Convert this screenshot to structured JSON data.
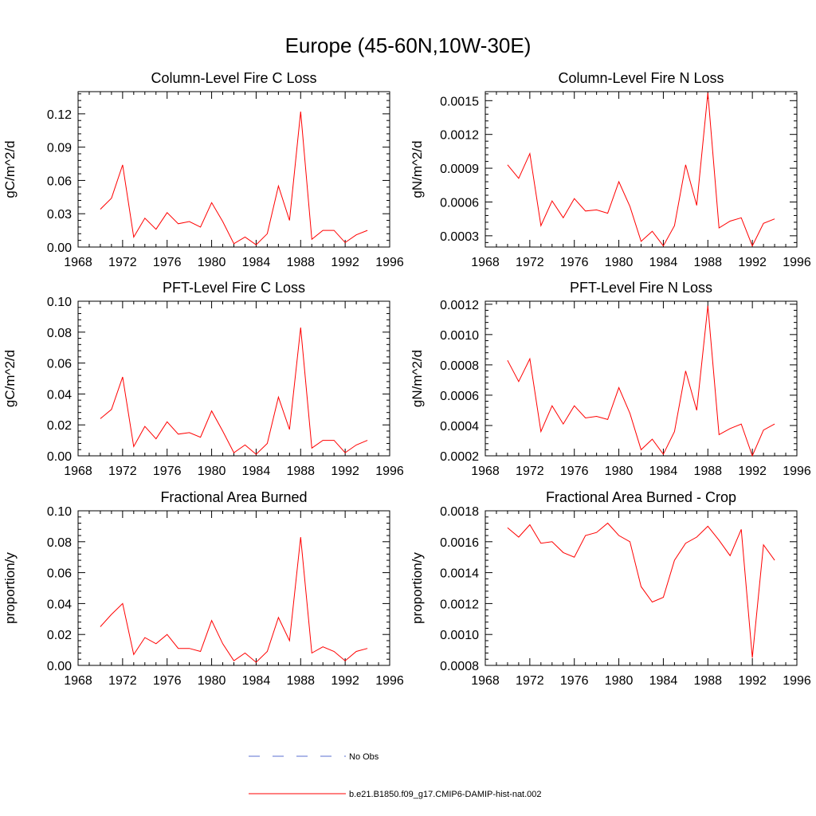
{
  "figure": {
    "title": "Europe (45-60N,10W-30E)"
  },
  "legend": [
    {
      "label": "No Obs",
      "color": "#5a6fd1",
      "style": "dashed"
    },
    {
      "label": "b.e21.B1850.f09_g17.CMIP6-DAMIP-hist-nat.002",
      "color": "#ff0000",
      "style": "solid"
    }
  ],
  "chart_data": [
    {
      "type": "line",
      "title": "Column-Level Fire C Loss",
      "ylabel": "gC/m^2/d",
      "xlim": [
        1968,
        1996
      ],
      "ylim": [
        0,
        0.14
      ],
      "xticks": [
        1968,
        1972,
        1976,
        1980,
        1984,
        1988,
        1992,
        1996
      ],
      "yticks": [
        0.0,
        0.03,
        0.06,
        0.09,
        0.12
      ],
      "ytick_labels": [
        "0.00",
        "0.03",
        "0.06",
        "0.09",
        "0.12"
      ],
      "series": [
        {
          "color": "#ff0000",
          "x": [
            1970,
            1971,
            1972,
            1973,
            1974,
            1975,
            1976,
            1977,
            1978,
            1979,
            1980,
            1981,
            1982,
            1983,
            1984,
            1985,
            1986,
            1987,
            1988,
            1989,
            1990,
            1991,
            1992,
            1993,
            1994
          ],
          "y": [
            0.034,
            0.044,
            0.074,
            0.009,
            0.026,
            0.016,
            0.031,
            0.021,
            0.023,
            0.018,
            0.04,
            0.023,
            0.003,
            0.009,
            0.002,
            0.012,
            0.055,
            0.024,
            0.122,
            0.007,
            0.015,
            0.015,
            0.004,
            0.011,
            0.015
          ]
        }
      ]
    },
    {
      "type": "line",
      "title": "Column-Level Fire N Loss",
      "ylabel": "gN/m^2/d",
      "xlim": [
        1968,
        1996
      ],
      "ylim": [
        0.0002,
        0.00158
      ],
      "xticks": [
        1968,
        1972,
        1976,
        1980,
        1984,
        1988,
        1992,
        1996
      ],
      "yticks": [
        0.0003,
        0.0006,
        0.0009,
        0.0012,
        0.0015
      ],
      "ytick_labels": [
        "0.0003",
        "0.0006",
        "0.0009",
        "0.0012",
        "0.0015"
      ],
      "series": [
        {
          "color": "#ff0000",
          "x": [
            1970,
            1971,
            1972,
            1973,
            1974,
            1975,
            1976,
            1977,
            1978,
            1979,
            1980,
            1981,
            1982,
            1983,
            1984,
            1985,
            1986,
            1987,
            1988,
            1989,
            1990,
            1991,
            1992,
            1993,
            1994
          ],
          "y": [
            0.00093,
            0.00081,
            0.00103,
            0.00039,
            0.00061,
            0.00046,
            0.00063,
            0.00052,
            0.00053,
            0.0005,
            0.00078,
            0.00056,
            0.00025,
            0.00034,
            0.00021,
            0.00039,
            0.00093,
            0.00057,
            0.00157,
            0.00037,
            0.00043,
            0.00046,
            0.00021,
            0.00041,
            0.00045
          ]
        }
      ]
    },
    {
      "type": "line",
      "title": "PFT-Level Fire C Loss",
      "ylabel": "gC/m^2/d",
      "xlim": [
        1968,
        1996
      ],
      "ylim": [
        0,
        0.1
      ],
      "xticks": [
        1968,
        1972,
        1976,
        1980,
        1984,
        1988,
        1992,
        1996
      ],
      "yticks": [
        0.0,
        0.02,
        0.04,
        0.06,
        0.08,
        0.1
      ],
      "ytick_labels": [
        "0.00",
        "0.02",
        "0.04",
        "0.06",
        "0.08",
        "0.10"
      ],
      "series": [
        {
          "color": "#ff0000",
          "x": [
            1970,
            1971,
            1972,
            1973,
            1974,
            1975,
            1976,
            1977,
            1978,
            1979,
            1980,
            1981,
            1982,
            1983,
            1984,
            1985,
            1986,
            1987,
            1988,
            1989,
            1990,
            1991,
            1992,
            1993,
            1994
          ],
          "y": [
            0.024,
            0.03,
            0.051,
            0.006,
            0.019,
            0.011,
            0.022,
            0.014,
            0.015,
            0.012,
            0.029,
            0.016,
            0.002,
            0.007,
            0.001,
            0.008,
            0.038,
            0.017,
            0.083,
            0.005,
            0.01,
            0.01,
            0.002,
            0.007,
            0.01
          ]
        }
      ]
    },
    {
      "type": "line",
      "title": "PFT-Level Fire N Loss",
      "ylabel": "gN/m^2/d",
      "xlim": [
        1968,
        1996
      ],
      "ylim": [
        0.0002,
        0.00122
      ],
      "xticks": [
        1968,
        1972,
        1976,
        1980,
        1984,
        1988,
        1992,
        1996
      ],
      "yticks": [
        0.0002,
        0.0004,
        0.0006,
        0.0008,
        0.001,
        0.0012
      ],
      "ytick_labels": [
        "0.0002",
        "0.0004",
        "0.0006",
        "0.0008",
        "0.0010",
        "0.0012"
      ],
      "series": [
        {
          "color": "#ff0000",
          "x": [
            1970,
            1971,
            1972,
            1973,
            1974,
            1975,
            1976,
            1977,
            1978,
            1979,
            1980,
            1981,
            1982,
            1983,
            1984,
            1985,
            1986,
            1987,
            1988,
            1989,
            1990,
            1991,
            1992,
            1993,
            1994
          ],
          "y": [
            0.00083,
            0.00069,
            0.00084,
            0.00036,
            0.00053,
            0.00041,
            0.00053,
            0.00045,
            0.00046,
            0.00044,
            0.00065,
            0.00048,
            0.00024,
            0.00031,
            0.00021,
            0.00036,
            0.00076,
            0.0005,
            0.00119,
            0.00034,
            0.00038,
            0.00041,
            0.0002,
            0.00037,
            0.00041
          ]
        }
      ]
    },
    {
      "type": "line",
      "title": "Fractional Area Burned",
      "ylabel": "proportion/y",
      "xlim": [
        1968,
        1996
      ],
      "ylim": [
        0,
        0.1
      ],
      "xticks": [
        1968,
        1972,
        1976,
        1980,
        1984,
        1988,
        1992,
        1996
      ],
      "yticks": [
        0.0,
        0.02,
        0.04,
        0.06,
        0.08,
        0.1
      ],
      "ytick_labels": [
        "0.00",
        "0.02",
        "0.04",
        "0.06",
        "0.08",
        "0.10"
      ],
      "series": [
        {
          "color": "#ff0000",
          "x": [
            1970,
            1971,
            1972,
            1973,
            1974,
            1975,
            1976,
            1977,
            1978,
            1979,
            1980,
            1981,
            1982,
            1983,
            1984,
            1985,
            1986,
            1987,
            1988,
            1989,
            1990,
            1991,
            1992,
            1993,
            1994
          ],
          "y": [
            0.025,
            0.033,
            0.04,
            0.007,
            0.018,
            0.014,
            0.02,
            0.011,
            0.011,
            0.009,
            0.029,
            0.014,
            0.003,
            0.008,
            0.002,
            0.009,
            0.031,
            0.016,
            0.083,
            0.008,
            0.012,
            0.009,
            0.003,
            0.009,
            0.011
          ]
        }
      ]
    },
    {
      "type": "line",
      "title": "Fractional Area Burned - Crop",
      "ylabel": "proportion/y",
      "xlim": [
        1968,
        1996
      ],
      "ylim": [
        0.0008,
        0.0018
      ],
      "xticks": [
        1968,
        1972,
        1976,
        1980,
        1984,
        1988,
        1992,
        1996
      ],
      "yticks": [
        0.0008,
        0.001,
        0.0012,
        0.0014,
        0.0016,
        0.0018
      ],
      "ytick_labels": [
        "0.0008",
        "0.0010",
        "0.0012",
        "0.0014",
        "0.0016",
        "0.0018"
      ],
      "series": [
        {
          "color": "#ff0000",
          "x": [
            1970,
            1971,
            1972,
            1973,
            1974,
            1975,
            1976,
            1977,
            1978,
            1979,
            1980,
            1981,
            1982,
            1983,
            1984,
            1985,
            1986,
            1987,
            1988,
            1989,
            1990,
            1991,
            1992,
            1993,
            1994
          ],
          "y": [
            0.00169,
            0.00163,
            0.00171,
            0.00159,
            0.0016,
            0.00153,
            0.0015,
            0.00164,
            0.00166,
            0.00172,
            0.00164,
            0.0016,
            0.00131,
            0.00121,
            0.00124,
            0.00148,
            0.00159,
            0.00163,
            0.0017,
            0.00161,
            0.00151,
            0.00168,
            0.00085,
            0.00158,
            0.00148
          ]
        }
      ]
    }
  ]
}
